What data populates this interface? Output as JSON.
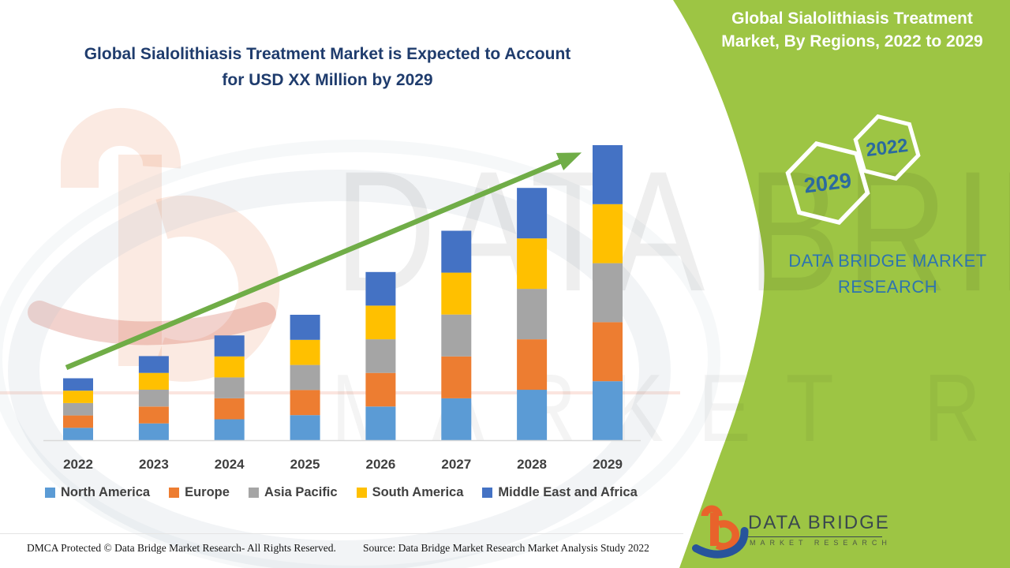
{
  "header": {
    "title_line1": "Global Sialolithiasis Treatment Market is Expected to Account",
    "title_line2": "for USD XX Million by 2029",
    "title_color": "#1F3C6D"
  },
  "watermark": {
    "line1": "DATA BRIDGE",
    "line2": "MARKET RESEARCH"
  },
  "side_panel": {
    "background": "#9DC544",
    "title_line1": "Global Sialolithiasis Treatment",
    "title_line2": "Market, By Regions, 2022 to 2029",
    "hexagon_large_label": "2029",
    "hexagon_small_label": "2022",
    "hexagon_label_color": "#2B6A9F",
    "hexagon_stroke_color": "#FFFFFF",
    "brand_line1": "DATA BRIDGE MARKET",
    "brand_line2": "RESEARCH",
    "brand_color": "#2E74AE"
  },
  "chart_data": {
    "type": "bar",
    "stacked": true,
    "title": "Global Sialolithiasis Treatment Market is Expected to Account for USD XX Million by 2029",
    "xlabel": "",
    "ylabel": "",
    "y_axis_visible": false,
    "values_note": "relative index estimated from bar heights; actual USD values shown as XX",
    "ylim": [
      0,
      100
    ],
    "grid": false,
    "legend_position": "bottom",
    "categories": [
      "2022",
      "2023",
      "2024",
      "2025",
      "2026",
      "2027",
      "2028",
      "2029"
    ],
    "series": [
      {
        "name": "North America",
        "values": [
          4.2,
          5.7,
          7.1,
          8.5,
          11.4,
          14.2,
          17.1,
          20
        ]
      },
      {
        "name": "Europe",
        "values": [
          4.2,
          5.7,
          7.1,
          8.5,
          11.4,
          14.2,
          17.1,
          20
        ]
      },
      {
        "name": "Asia Pacific",
        "values": [
          4.2,
          5.7,
          7.1,
          8.5,
          11.4,
          14.2,
          17.1,
          20
        ]
      },
      {
        "name": "South America",
        "values": [
          4.2,
          5.7,
          7.1,
          8.5,
          11.4,
          14.2,
          17.1,
          20
        ]
      },
      {
        "name": "Middle East and Africa",
        "values": [
          4.2,
          5.7,
          7.1,
          8.5,
          11.4,
          14.2,
          17.1,
          20
        ]
      }
    ],
    "totals": [
      21,
      28.5,
      35.5,
      42.5,
      57,
      71,
      85.5,
      100
    ],
    "colors": {
      "North America": "#5B9BD5",
      "Europe": "#ED7D31",
      "Asia Pacific": "#A5A5A5",
      "South America": "#FFC000",
      "Middle East and Africa": "#4472C4"
    },
    "trend_arrow_color": "#70AD47",
    "baseline_color": "#D9D9D9",
    "label_color": "#3F3F3F"
  },
  "footer": {
    "dmca": "DMCA Protected © Data Bridge Market Research- All Rights Reserved.",
    "source": "Source: Data Bridge Market Research Market Analysis Study 2022",
    "logo_name": "DATA BRIDGE",
    "logo_sub": "MARKET RESEARCH"
  }
}
